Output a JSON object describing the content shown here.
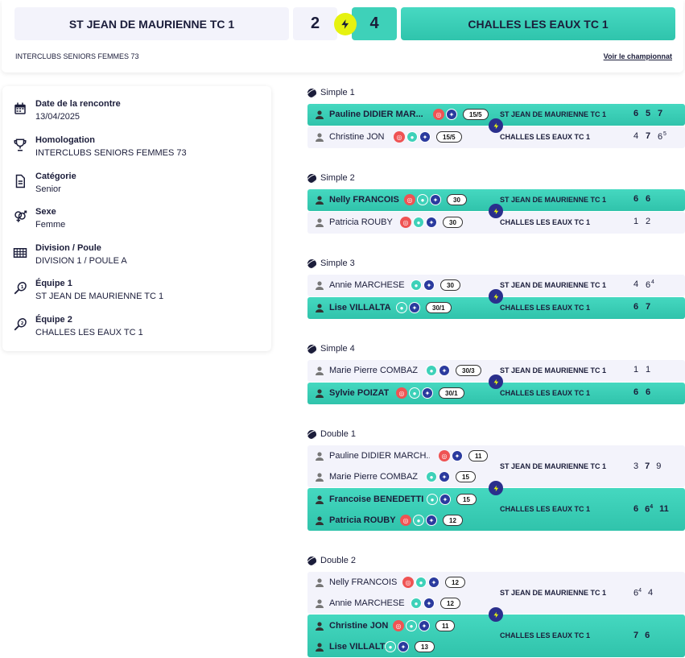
{
  "header": {
    "team1": "ST JEAN DE MAURIENNE TC 1",
    "team2": "CHALLES LES EAUX TC 1",
    "score1": "2",
    "score2": "4",
    "competition": "INTERCLUBS SENIORS FEMMES 73",
    "champ_link": "Voir le championnat"
  },
  "info": [
    {
      "label": "Date de la rencontre",
      "value": "13/04/2025",
      "icon": "calendar-icon"
    },
    {
      "label": "Homologation",
      "value": "INTERCLUBS SENIORS FEMMES 73",
      "icon": "trophy-icon"
    },
    {
      "label": "Catégorie",
      "value": "Senior",
      "icon": "document-icon"
    },
    {
      "label": "Sexe",
      "value": "Femme",
      "icon": "gender-icon"
    },
    {
      "label": "Division / Poule",
      "value": "DIVISION 1 / POULE A",
      "icon": "grid-icon"
    },
    {
      "label": "Équipe 1",
      "value": "ST JEAN DE MAURIENNE TC 1",
      "icon": "racket-1-icon"
    },
    {
      "label": "Équipe 2",
      "value": "CHALLES LES EAUX TC 1",
      "icon": "racket-2-icon"
    }
  ],
  "matches": {
    "s1": {
      "title": "Simple 1",
      "p1": {
        "name": "Pauline DIDIER MAR...",
        "rank": "15/5",
        "team": "ST JEAN DE MAURIENNE TC 1"
      },
      "p2": {
        "name": "Christine JON",
        "rank": "15/5",
        "team": "CHALLES LES EAUX TC 1"
      }
    },
    "s2": {
      "title": "Simple 2",
      "p1": {
        "name": "Nelly FRANCOIS",
        "rank": "30",
        "team": "ST JEAN DE MAURIENNE TC 1"
      },
      "p2": {
        "name": "Patricia ROUBY",
        "rank": "30",
        "team": "CHALLES LES EAUX TC 1"
      }
    },
    "s3": {
      "title": "Simple 3",
      "p1": {
        "name": "Annie MARCHESE",
        "rank": "30",
        "team": "ST JEAN DE MAURIENNE TC 1"
      },
      "p2": {
        "name": "Lise VILLALTA",
        "rank": "30/1",
        "team": "CHALLES LES EAUX TC 1"
      }
    },
    "s4": {
      "title": "Simple 4",
      "p1": {
        "name": "Marie Pierre COMBAZ",
        "rank": "30/3",
        "team": "ST JEAN DE MAURIENNE TC 1"
      },
      "p2": {
        "name": "Sylvie POIZAT",
        "rank": "30/1",
        "team": "CHALLES LES EAUX TC 1"
      }
    },
    "d1": {
      "title": "Double 1",
      "a1": {
        "name": "Pauline DIDIER MARCH...",
        "rank": "11"
      },
      "a2": {
        "name": "Marie Pierre COMBAZ",
        "rank": "15"
      },
      "b1": {
        "name": "Francoise BENEDETTI",
        "rank": "15"
      },
      "b2": {
        "name": "Patricia ROUBY",
        "rank": "12"
      },
      "teamA": "ST JEAN DE MAURIENNE TC 1",
      "teamB": "CHALLES LES EAUX TC 1"
    },
    "d2": {
      "title": "Double 2",
      "a1": {
        "name": "Nelly FRANCOIS",
        "rank": "12"
      },
      "a2": {
        "name": "Annie MARCHESE",
        "rank": "12"
      },
      "b1": {
        "name": "Christine JON",
        "rank": "11"
      },
      "b2": {
        "name": "Lise VILLALTA",
        "rank": "13"
      },
      "teamA": "ST JEAN DE MAURIENNE TC 1",
      "teamB": "CHALLES LES EAUX TC 1"
    }
  },
  "scores": {
    "s1a": [
      "6",
      "5",
      "7"
    ],
    "s1b": [
      "4",
      "7",
      "6",
      "5"
    ],
    "s2a": [
      "6",
      "6"
    ],
    "s2b": [
      "1",
      "2"
    ],
    "s3a": [
      "4",
      "6",
      "4"
    ],
    "s3b": [
      "6",
      "7"
    ],
    "s4a": [
      "1",
      "1"
    ],
    "s4b": [
      "6",
      "6"
    ],
    "d1a": [
      "3",
      "7",
      "9"
    ],
    "d1b": [
      "6",
      "6",
      "4",
      "11"
    ],
    "d2a": [
      "6",
      "4",
      "4"
    ],
    "d2b": [
      "7",
      "6"
    ]
  },
  "colors": {
    "accent": "#3ed1b9",
    "bolt": "#e6f20f",
    "navy": "#1b1d3a",
    "badge_red": "#ef5353",
    "badge_blue": "#2a3a9e"
  }
}
